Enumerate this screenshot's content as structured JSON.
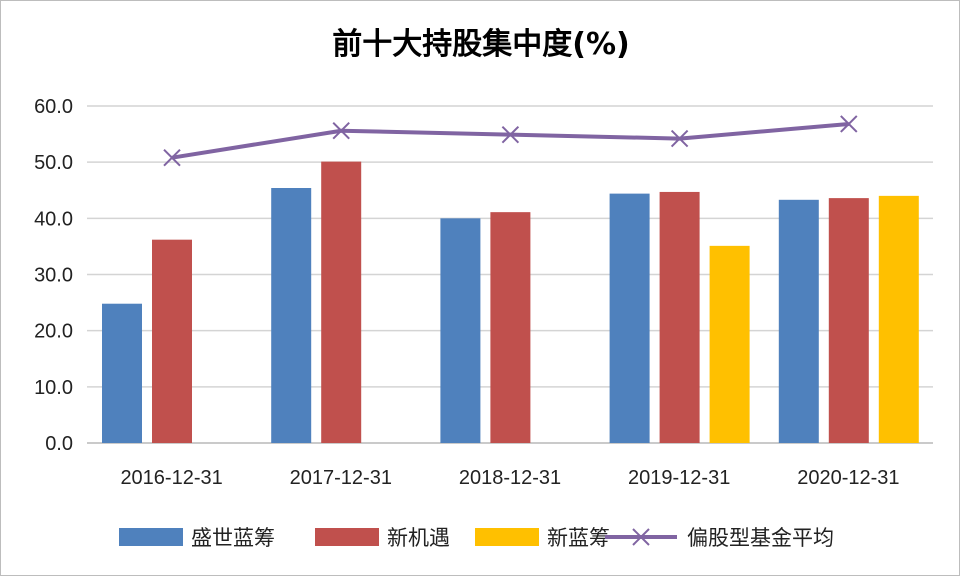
{
  "chart_data": {
    "type": "bar",
    "title": "前十大持股集中度(%)",
    "categories": [
      "2016-12-31",
      "2017-12-31",
      "2018-12-31",
      "2019-12-31",
      "2020-12-31"
    ],
    "ylim": [
      0,
      60
    ],
    "yticks": [
      "0.0",
      "10.0",
      "20.0",
      "30.0",
      "40.0",
      "50.0",
      "60.0"
    ],
    "grid": true,
    "legend_position": "bottom",
    "series": [
      {
        "name": "盛世蓝筹",
        "type": "bar",
        "color": "#4f81bd",
        "values": [
          24.8,
          45.4,
          40.0,
          44.4,
          43.3
        ]
      },
      {
        "name": "新机遇",
        "type": "bar",
        "color": "#c0504d",
        "values": [
          36.2,
          50.1,
          41.1,
          44.7,
          43.6
        ]
      },
      {
        "name": "新蓝筹",
        "type": "bar",
        "color": "#ffc000",
        "values": [
          null,
          null,
          null,
          35.1,
          44.0
        ]
      },
      {
        "name": "偏股型基金平均",
        "type": "line",
        "color": "#8064a2",
        "marker": "x",
        "values": [
          50.8,
          55.6,
          54.9,
          54.2,
          56.8
        ]
      }
    ]
  }
}
